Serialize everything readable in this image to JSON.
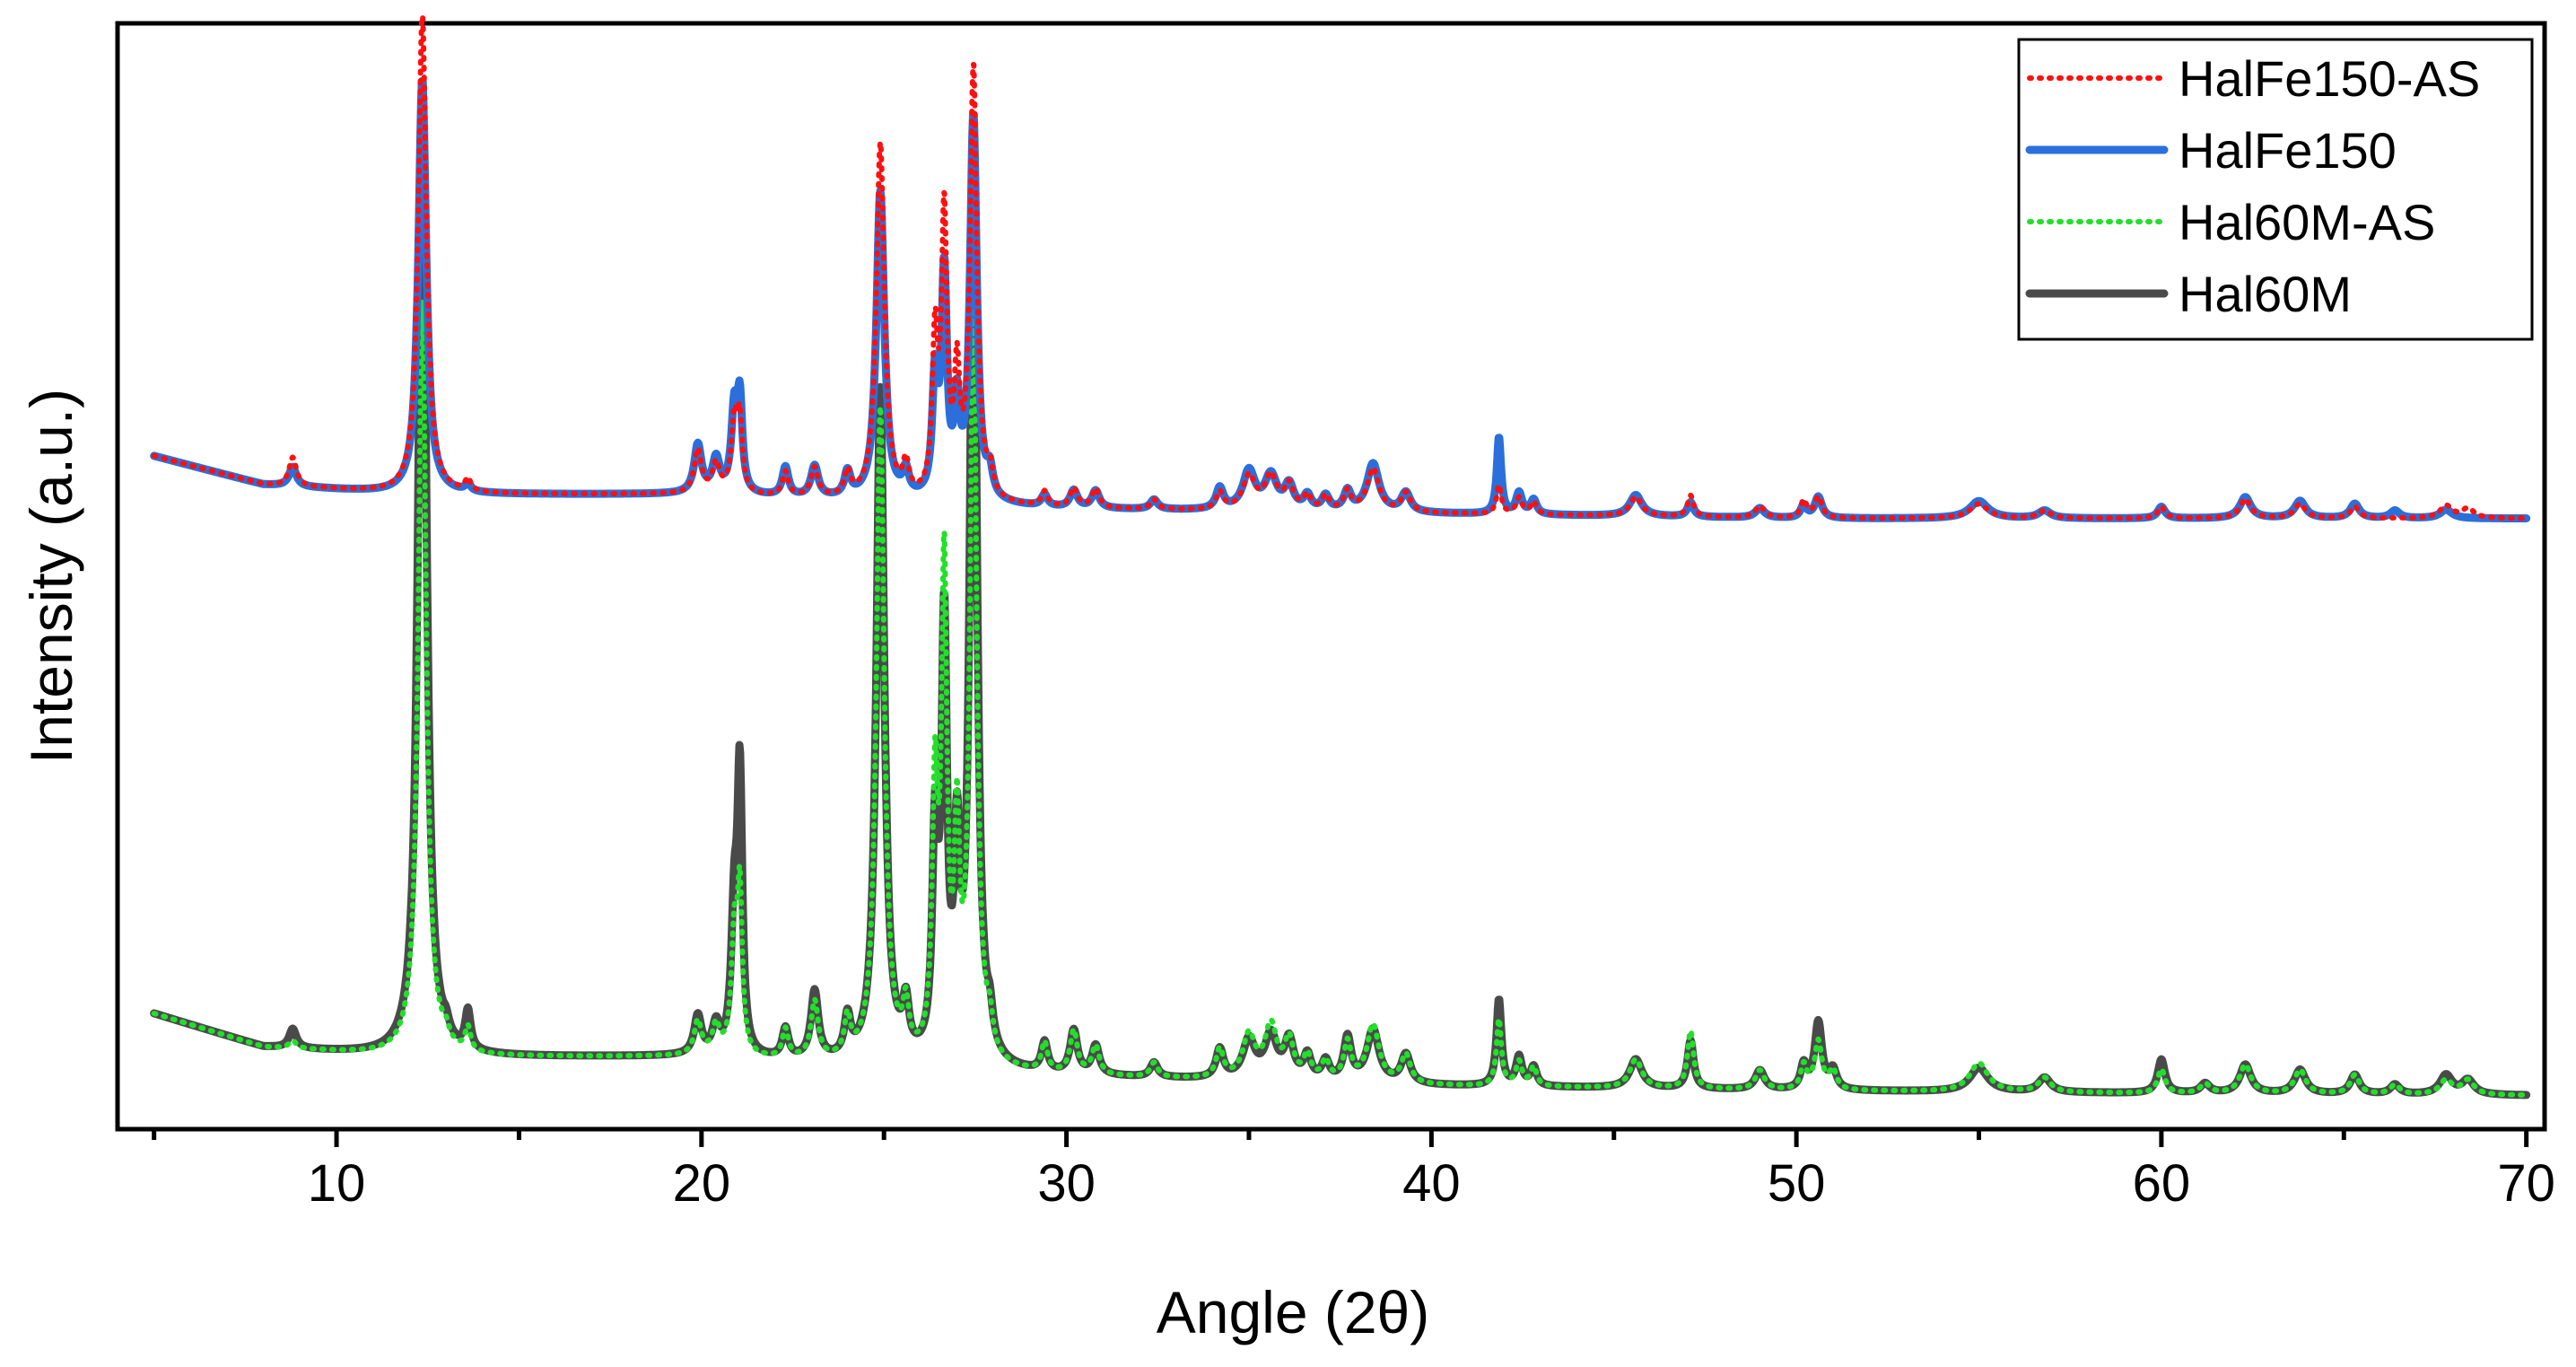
{
  "chart_data": {
    "type": "line",
    "xlabel": "Angle (2θ)",
    "ylabel": "Intensity (a.u.)",
    "xlim": [
      4,
      70.5
    ],
    "ylim": [
      -3,
      112
    ],
    "y_ticks_visible": false,
    "grid": false,
    "x_ticks": [
      10,
      20,
      30,
      40,
      50,
      60,
      70
    ],
    "x_tick_labels": [
      "10",
      "20",
      "30",
      "40",
      "50",
      "60",
      "70"
    ],
    "legend_position": "top-right",
    "colors": {
      "HalFe150-AS": "#ff1010",
      "HalFe150": "#2a6fdb",
      "Hal60M-AS": "#22e02a",
      "Hal60M": "#4a4a4a"
    },
    "series": [
      {
        "name": "HalFe150-AS",
        "style": "dotted",
        "baseline": [
          [
            5,
            67
          ],
          [
            8,
            64
          ],
          [
            12,
            63
          ],
          [
            20,
            63
          ],
          [
            30,
            61.5
          ],
          [
            40,
            61
          ],
          [
            50,
            60.5
          ],
          [
            60,
            60.5
          ],
          [
            70,
            60.5
          ]
        ],
        "peaks": [
          [
            8.8,
            3,
            0.12
          ],
          [
            12.35,
            50,
            0.13
          ],
          [
            13.6,
            1.3,
            0.09
          ],
          [
            19.9,
            4.5,
            0.12
          ],
          [
            20.4,
            3,
            0.12
          ],
          [
            20.9,
            7.5,
            0.1
          ],
          [
            21.05,
            7,
            0.08
          ],
          [
            22.3,
            2.5,
            0.1
          ],
          [
            23.1,
            3,
            0.12
          ],
          [
            24.0,
            2.5,
            0.1
          ],
          [
            24.9,
            37,
            0.13
          ],
          [
            25.6,
            3.2,
            0.1
          ],
          [
            26.4,
            16,
            0.09
          ],
          [
            26.65,
            29,
            0.09
          ],
          [
            27.0,
            12,
            0.09
          ],
          [
            27.45,
            45,
            0.11
          ],
          [
            27.9,
            2.5,
            0.1
          ],
          [
            29.4,
            1.5,
            0.1
          ],
          [
            30.2,
            2,
            0.12
          ],
          [
            30.8,
            2,
            0.12
          ],
          [
            32.4,
            1,
            0.12
          ],
          [
            34.2,
            1.8,
            0.12
          ],
          [
            35.0,
            3.5,
            0.2
          ],
          [
            35.6,
            3.5,
            0.2
          ],
          [
            36.1,
            2.5,
            0.15
          ],
          [
            36.6,
            1.5,
            0.12
          ],
          [
            37.1,
            1.5,
            0.12
          ],
          [
            37.7,
            2,
            0.12
          ],
          [
            38.4,
            4.5,
            0.2
          ],
          [
            39.3,
            2,
            0.15
          ],
          [
            41.85,
            3,
            0.08
          ],
          [
            42.4,
            1.7,
            0.1
          ],
          [
            42.8,
            1.3,
            0.1
          ],
          [
            45.6,
            2,
            0.2
          ],
          [
            47.1,
            2.2,
            0.1
          ],
          [
            49.0,
            1.2,
            0.15
          ],
          [
            50.2,
            1.8,
            0.1
          ],
          [
            50.6,
            2.2,
            0.12
          ],
          [
            55.0,
            1.5,
            0.3
          ],
          [
            56.8,
            0.8,
            0.2
          ],
          [
            60.0,
            1.2,
            0.12
          ],
          [
            62.3,
            2,
            0.18
          ],
          [
            63.8,
            1.5,
            0.18
          ],
          [
            65.3,
            1.2,
            0.15
          ],
          [
            67.8,
            1.3,
            0.2
          ],
          [
            68.4,
            1,
            0.2
          ]
        ]
      },
      {
        "name": "HalFe150",
        "style": "solid",
        "baseline": [
          [
            5,
            67
          ],
          [
            8,
            64
          ],
          [
            12,
            63
          ],
          [
            20,
            63
          ],
          [
            30,
            61.5
          ],
          [
            40,
            61
          ],
          [
            50,
            60.5
          ],
          [
            60,
            60.5
          ],
          [
            70,
            60.5
          ]
        ],
        "peaks": [
          [
            8.8,
            2,
            0.12
          ],
          [
            12.35,
            43,
            0.13
          ],
          [
            13.6,
            0.8,
            0.09
          ],
          [
            19.9,
            5,
            0.12
          ],
          [
            20.4,
            3.5,
            0.12
          ],
          [
            20.9,
            8.5,
            0.1
          ],
          [
            21.05,
            9,
            0.08
          ],
          [
            22.3,
            3,
            0.1
          ],
          [
            23.1,
            3.2,
            0.12
          ],
          [
            24.0,
            2.5,
            0.1
          ],
          [
            24.9,
            32,
            0.13
          ],
          [
            25.6,
            2.5,
            0.1
          ],
          [
            26.4,
            12,
            0.09
          ],
          [
            26.65,
            23,
            0.09
          ],
          [
            27.0,
            9,
            0.09
          ],
          [
            27.45,
            40,
            0.11
          ],
          [
            27.9,
            2.5,
            0.1
          ],
          [
            29.4,
            1.2,
            0.1
          ],
          [
            30.2,
            1.8,
            0.12
          ],
          [
            30.8,
            1.8,
            0.12
          ],
          [
            32.4,
            1,
            0.12
          ],
          [
            34.2,
            2.2,
            0.12
          ],
          [
            35.0,
            4,
            0.2
          ],
          [
            35.6,
            3.5,
            0.2
          ],
          [
            36.1,
            2.5,
            0.15
          ],
          [
            36.6,
            1.5,
            0.12
          ],
          [
            37.1,
            1.5,
            0.12
          ],
          [
            37.7,
            2,
            0.12
          ],
          [
            38.4,
            5,
            0.2
          ],
          [
            39.3,
            2,
            0.15
          ],
          [
            41.85,
            8,
            0.07
          ],
          [
            42.4,
            2.2,
            0.1
          ],
          [
            42.8,
            1.5,
            0.1
          ],
          [
            45.6,
            2.2,
            0.2
          ],
          [
            47.1,
            1.5,
            0.1
          ],
          [
            49.0,
            1,
            0.15
          ],
          [
            50.2,
            1.3,
            0.1
          ],
          [
            50.6,
            2.2,
            0.12
          ],
          [
            55.0,
            1.8,
            0.3
          ],
          [
            56.8,
            0.8,
            0.2
          ],
          [
            60.0,
            1.2,
            0.12
          ],
          [
            62.3,
            2.2,
            0.18
          ],
          [
            63.8,
            1.8,
            0.18
          ],
          [
            65.3,
            1.5,
            0.15
          ],
          [
            66.4,
            0.8,
            0.15
          ],
          [
            67.8,
            0.9,
            0.2
          ]
        ]
      },
      {
        "name": "Hal60M-AS",
        "style": "dotted",
        "baseline": [
          [
            5,
            9
          ],
          [
            8,
            5.5
          ],
          [
            12,
            4.5
          ],
          [
            20,
            4.5
          ],
          [
            30,
            2.5
          ],
          [
            40,
            1.5
          ],
          [
            50,
            1
          ],
          [
            60,
            0.7
          ],
          [
            70,
            0.5
          ]
        ],
        "peaks": [
          [
            8.8,
            0.8,
            0.12
          ],
          [
            12.35,
            79,
            0.13
          ],
          [
            13.0,
            1.2,
            0.1
          ],
          [
            13.6,
            2.5,
            0.09
          ],
          [
            19.9,
            3.5,
            0.12
          ],
          [
            20.4,
            3,
            0.12
          ],
          [
            20.9,
            12,
            0.1
          ],
          [
            21.05,
            16,
            0.08
          ],
          [
            22.3,
            3,
            0.1
          ],
          [
            23.1,
            6,
            0.12
          ],
          [
            24.0,
            4,
            0.1
          ],
          [
            24.9,
            68,
            0.13
          ],
          [
            25.6,
            5,
            0.1
          ],
          [
            26.4,
            27,
            0.09
          ],
          [
            26.65,
            50,
            0.09
          ],
          [
            27.0,
            22,
            0.09
          ],
          [
            27.45,
            79,
            0.11
          ],
          [
            27.9,
            3,
            0.1
          ],
          [
            29.4,
            3,
            0.1
          ],
          [
            30.2,
            4.5,
            0.12
          ],
          [
            30.8,
            3,
            0.12
          ],
          [
            32.4,
            1.5,
            0.12
          ],
          [
            34.2,
            3,
            0.12
          ],
          [
            35.0,
            4.5,
            0.2
          ],
          [
            35.6,
            5.5,
            0.2
          ],
          [
            36.1,
            4,
            0.15
          ],
          [
            36.6,
            2.5,
            0.12
          ],
          [
            37.1,
            2,
            0.12
          ],
          [
            37.7,
            4,
            0.12
          ],
          [
            38.4,
            6,
            0.2
          ],
          [
            39.3,
            3,
            0.15
          ],
          [
            41.85,
            7,
            0.08
          ],
          [
            42.4,
            2.5,
            0.1
          ],
          [
            42.8,
            2,
            0.1
          ],
          [
            45.6,
            3,
            0.2
          ],
          [
            47.1,
            6,
            0.1
          ],
          [
            49.0,
            2,
            0.15
          ],
          [
            50.2,
            2.5,
            0.1
          ],
          [
            50.6,
            5,
            0.12
          ],
          [
            51.0,
            2,
            0.12
          ],
          [
            55.0,
            3,
            0.3
          ],
          [
            56.8,
            1.5,
            0.2
          ],
          [
            60.0,
            2.5,
            0.12
          ],
          [
            61.2,
            1,
            0.15
          ],
          [
            62.3,
            3,
            0.18
          ],
          [
            63.8,
            2.5,
            0.18
          ],
          [
            65.3,
            2,
            0.15
          ],
          [
            66.4,
            1,
            0.15
          ],
          [
            67.8,
            1.5,
            0.2
          ],
          [
            68.4,
            1.5,
            0.2
          ]
        ]
      },
      {
        "name": "Hal60M",
        "style": "solid",
        "baseline": [
          [
            5,
            9
          ],
          [
            8,
            5.5
          ],
          [
            12,
            4.5
          ],
          [
            20,
            4.5
          ],
          [
            30,
            2.5
          ],
          [
            40,
            1.5
          ],
          [
            50,
            1
          ],
          [
            60,
            0.7
          ],
          [
            70,
            0.5
          ]
        ],
        "peaks": [
          [
            8.8,
            2,
            0.12
          ],
          [
            12.35,
            102,
            0.13
          ],
          [
            13.0,
            1.2,
            0.1
          ],
          [
            13.6,
            4,
            0.09
          ],
          [
            19.9,
            4,
            0.12
          ],
          [
            20.4,
            3,
            0.12
          ],
          [
            20.9,
            14,
            0.1
          ],
          [
            21.05,
            28,
            0.08
          ],
          [
            22.3,
            3,
            0.1
          ],
          [
            23.1,
            7,
            0.12
          ],
          [
            24.0,
            4,
            0.1
          ],
          [
            24.9,
            70,
            0.13
          ],
          [
            25.6,
            5,
            0.1
          ],
          [
            26.4,
            22,
            0.09
          ],
          [
            26.65,
            44,
            0.09
          ],
          [
            27.0,
            20,
            0.09
          ],
          [
            27.45,
            96,
            0.11
          ],
          [
            27.9,
            3,
            0.1
          ],
          [
            29.4,
            3,
            0.1
          ],
          [
            30.2,
            4.5,
            0.12
          ],
          [
            30.8,
            3,
            0.12
          ],
          [
            32.4,
            1.5,
            0.12
          ],
          [
            34.2,
            3,
            0.12
          ],
          [
            35.0,
            4,
            0.2
          ],
          [
            35.6,
            4.5,
            0.2
          ],
          [
            36.1,
            4,
            0.15
          ],
          [
            36.6,
            2.5,
            0.12
          ],
          [
            37.1,
            2,
            0.12
          ],
          [
            37.7,
            4.5,
            0.12
          ],
          [
            38.4,
            5.5,
            0.2
          ],
          [
            39.3,
            3,
            0.15
          ],
          [
            41.85,
            9,
            0.08
          ],
          [
            42.4,
            3,
            0.1
          ],
          [
            42.8,
            2,
            0.1
          ],
          [
            45.6,
            3,
            0.2
          ],
          [
            47.1,
            5,
            0.1
          ],
          [
            49.0,
            2,
            0.15
          ],
          [
            50.2,
            2.5,
            0.1
          ],
          [
            50.6,
            7,
            0.12
          ],
          [
            51.0,
            2,
            0.12
          ],
          [
            55.0,
            2.5,
            0.3
          ],
          [
            56.8,
            1.5,
            0.2
          ],
          [
            60.0,
            3.5,
            0.12
          ],
          [
            61.2,
            1,
            0.15
          ],
          [
            62.3,
            3,
            0.18
          ],
          [
            63.8,
            2.5,
            0.18
          ],
          [
            65.3,
            2,
            0.15
          ],
          [
            66.4,
            1,
            0.15
          ],
          [
            67.8,
            2,
            0.2
          ],
          [
            68.4,
            1.5,
            0.2
          ]
        ]
      }
    ]
  }
}
